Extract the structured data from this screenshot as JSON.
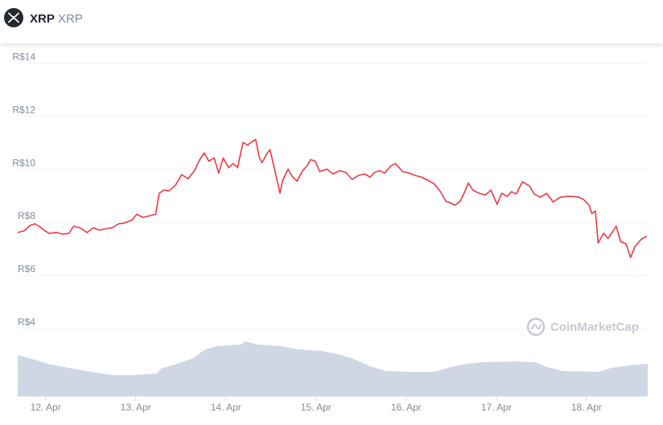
{
  "header": {
    "name": "XRP",
    "symbol": "XRP"
  },
  "watermark": "CoinMarketCap",
  "chart_data": {
    "type": "line",
    "color": "#ea3943",
    "grid": true,
    "xlim": [
      11.69,
      18.68
    ],
    "ylim": [
      1.45,
      14.25
    ],
    "xticks": [
      {
        "value": 12,
        "label": "12. Apr"
      },
      {
        "value": 13,
        "label": "13. Apr"
      },
      {
        "value": 14,
        "label": "14. Apr"
      },
      {
        "value": 15,
        "label": "15. Apr"
      },
      {
        "value": 16,
        "label": "16. Apr"
      },
      {
        "value": 17,
        "label": "17. Apr"
      },
      {
        "value": 18,
        "label": "18. Apr"
      }
    ],
    "yticks": [
      {
        "value": 4,
        "label": "R$4"
      },
      {
        "value": 6,
        "label": "R$6"
      },
      {
        "value": 8,
        "label": "R$8"
      },
      {
        "value": 10,
        "label": "R$10"
      },
      {
        "value": 12,
        "label": "R$12"
      },
      {
        "value": 14,
        "label": "R$14"
      }
    ],
    "x": [
      11.69,
      11.76,
      11.83,
      11.88,
      11.94,
      11.98,
      12.04,
      12.12,
      12.19,
      12.26,
      12.31,
      12.38,
      12.46,
      12.53,
      12.6,
      12.67,
      12.74,
      12.81,
      12.88,
      12.96,
      13.01,
      13.08,
      13.15,
      13.22,
      13.26,
      13.31,
      13.37,
      13.44,
      13.51,
      13.58,
      13.65,
      13.71,
      13.76,
      13.81,
      13.87,
      13.92,
      13.97,
      14.03,
      14.08,
      14.13,
      14.19,
      14.24,
      14.29,
      14.33,
      14.37,
      14.4,
      14.46,
      14.49,
      14.54,
      14.6,
      14.63,
      14.69,
      14.74,
      14.79,
      14.85,
      14.9,
      14.94,
      14.99,
      15.04,
      15.12,
      15.19,
      15.26,
      15.33,
      15.4,
      15.47,
      15.54,
      15.6,
      15.65,
      15.71,
      15.76,
      15.83,
      15.88,
      15.96,
      16.03,
      16.1,
      16.17,
      16.24,
      16.31,
      16.38,
      16.44,
      16.49,
      16.54,
      16.6,
      16.65,
      16.69,
      16.74,
      16.81,
      16.88,
      16.94,
      17.01,
      17.06,
      17.12,
      17.17,
      17.22,
      17.29,
      17.37,
      17.42,
      17.49,
      17.56,
      17.63,
      17.71,
      17.78,
      17.85,
      17.92,
      17.97,
      18.03,
      18.06,
      18.1,
      18.13,
      18.19,
      18.24,
      18.29,
      18.33,
      18.38,
      18.44,
      18.49,
      18.54,
      18.6,
      18.67
    ],
    "values": [
      7.61,
      7.67,
      7.88,
      7.94,
      7.82,
      7.7,
      7.58,
      7.61,
      7.55,
      7.58,
      7.85,
      7.79,
      7.61,
      7.79,
      7.7,
      7.76,
      7.79,
      7.94,
      7.97,
      8.09,
      8.3,
      8.18,
      8.24,
      8.3,
      9.09,
      9.21,
      9.18,
      9.39,
      9.79,
      9.64,
      9.94,
      10.36,
      10.61,
      10.3,
      10.42,
      9.85,
      10.42,
      10.06,
      10.21,
      10.06,
      11.0,
      10.91,
      11.03,
      11.12,
      10.45,
      10.24,
      10.61,
      10.73,
      10.0,
      9.09,
      9.58,
      10.0,
      9.7,
      9.55,
      9.94,
      10.12,
      10.36,
      10.3,
      9.91,
      10.0,
      9.82,
      9.94,
      9.88,
      9.61,
      9.76,
      9.82,
      9.7,
      9.88,
      9.94,
      9.85,
      10.12,
      10.21,
      9.91,
      9.85,
      9.76,
      9.7,
      9.58,
      9.45,
      9.15,
      8.79,
      8.73,
      8.64,
      8.79,
      9.15,
      9.48,
      9.21,
      9.09,
      9.03,
      9.21,
      8.67,
      9.09,
      8.97,
      9.15,
      9.06,
      9.52,
      9.36,
      9.06,
      8.94,
      9.09,
      8.76,
      8.94,
      8.97,
      8.97,
      8.94,
      8.85,
      8.64,
      8.33,
      8.42,
      7.21,
      7.58,
      7.39,
      7.64,
      7.85,
      7.27,
      7.18,
      6.67,
      7.09,
      7.33,
      7.48
    ]
  }
}
